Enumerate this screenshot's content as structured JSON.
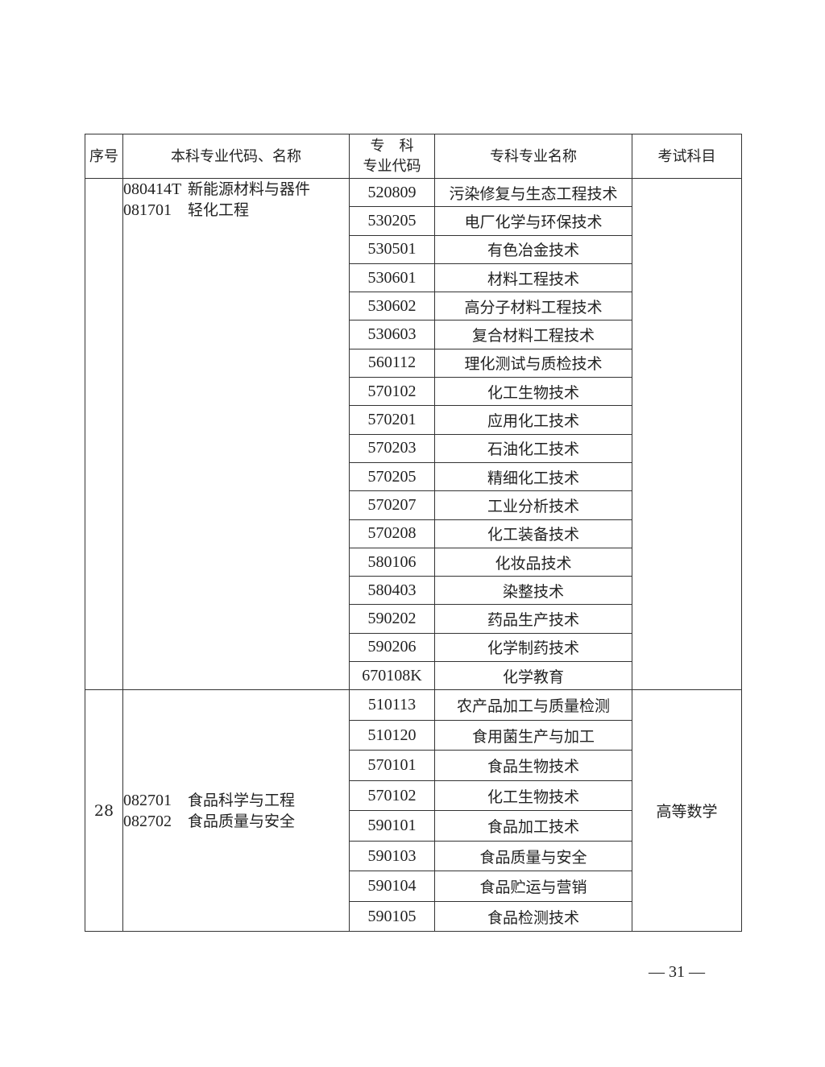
{
  "headers": {
    "seq": "序号",
    "ben": "本科专业代码、名称",
    "code_l1": "专　科",
    "code_l2": "专业代码",
    "name": "专科专业名称",
    "exam": "考试科目"
  },
  "groups": [
    {
      "seq": "",
      "ben": [
        {
          "code": "080414T",
          "name": "新能源材料与器件"
        },
        {
          "code": "081701",
          "name": "轻化工程"
        }
      ],
      "exam": "",
      "rows": [
        {
          "code": "520809",
          "name": "污染修复与生态工程技术"
        },
        {
          "code": "530205",
          "name": "电厂化学与环保技术"
        },
        {
          "code": "530501",
          "name": "有色冶金技术"
        },
        {
          "code": "530601",
          "name": "材料工程技术"
        },
        {
          "code": "530602",
          "name": "高分子材料工程技术"
        },
        {
          "code": "530603",
          "name": "复合材料工程技术"
        },
        {
          "code": "560112",
          "name": "理化测试与质检技术"
        },
        {
          "code": "570102",
          "name": "化工生物技术"
        },
        {
          "code": "570201",
          "name": "应用化工技术"
        },
        {
          "code": "570203",
          "name": "石油化工技术"
        },
        {
          "code": "570205",
          "name": "精细化工技术"
        },
        {
          "code": "570207",
          "name": "工业分析技术"
        },
        {
          "code": "570208",
          "name": "化工装备技术"
        },
        {
          "code": "580106",
          "name": "化妆品技术"
        },
        {
          "code": "580403",
          "name": "染整技术"
        },
        {
          "code": "590202",
          "name": "药品生产技术"
        },
        {
          "code": "590206",
          "name": "化学制药技术"
        },
        {
          "code": "670108K",
          "name": "化学教育"
        }
      ]
    },
    {
      "seq": "28",
      "ben": [
        {
          "code": "082701",
          "name": "食品科学与工程"
        },
        {
          "code": "082702",
          "name": "食品质量与安全"
        }
      ],
      "exam": "高等数学",
      "rows": [
        {
          "code": "510113",
          "name": "农产品加工与质量检测"
        },
        {
          "code": "510120",
          "name": "食用菌生产与加工"
        },
        {
          "code": "570101",
          "name": "食品生物技术"
        },
        {
          "code": "570102",
          "name": "化工生物技术"
        },
        {
          "code": "590101",
          "name": "食品加工技术"
        },
        {
          "code": "590103",
          "name": "食品质量与安全"
        },
        {
          "code": "590104",
          "name": "食品贮运与营销"
        },
        {
          "code": "590105",
          "name": "食品检测技术"
        }
      ]
    }
  ],
  "page_number": "— 31 —"
}
